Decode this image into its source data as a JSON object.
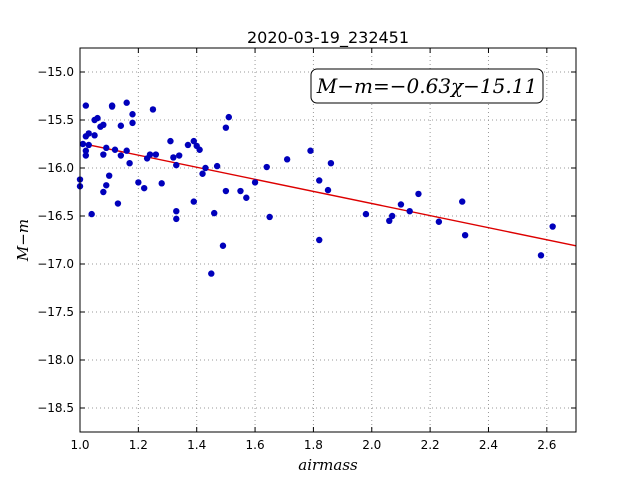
{
  "chart_data": {
    "type": "scatter",
    "title": "2020-03-19_232451",
    "xlabel": "airmass",
    "ylabel": "M−m",
    "xlim": [
      1.0,
      2.7
    ],
    "ylim": [
      -18.75,
      -14.75
    ],
    "xticks": [
      1.0,
      1.2,
      1.4,
      1.6,
      1.8,
      2.0,
      2.2,
      2.4,
      2.6
    ],
    "xtick_labels": [
      "1.0",
      "1.2",
      "1.4",
      "1.6",
      "1.8",
      "2.0",
      "2.2",
      "2.4",
      "2.6"
    ],
    "yticks": [
      -15.0,
      -15.5,
      -16.0,
      -16.5,
      -17.0,
      -17.5,
      -18.0,
      -18.5
    ],
    "ytick_labels": [
      "−15.0",
      "−15.5",
      "−16.0",
      "−16.5",
      "−17.0",
      "−17.5",
      "−18.0",
      "−18.5"
    ],
    "grid": true,
    "annotation": "M−m=−0.63χ−15.11",
    "fit": {
      "slope": -0.63,
      "intercept": -15.11,
      "color": "#dd0000"
    },
    "point_color": "#0000bb",
    "points": [
      {
        "x": 1.0,
        "y": -16.12
      },
      {
        "x": 1.0,
        "y": -16.19
      },
      {
        "x": 1.01,
        "y": -15.75
      },
      {
        "x": 1.02,
        "y": -15.35
      },
      {
        "x": 1.02,
        "y": -15.67
      },
      {
        "x": 1.02,
        "y": -15.82
      },
      {
        "x": 1.02,
        "y": -15.87
      },
      {
        "x": 1.03,
        "y": -15.76
      },
      {
        "x": 1.03,
        "y": -15.64
      },
      {
        "x": 1.04,
        "y": -16.48
      },
      {
        "x": 1.05,
        "y": -15.66
      },
      {
        "x": 1.05,
        "y": -15.5
      },
      {
        "x": 1.06,
        "y": -15.48
      },
      {
        "x": 1.07,
        "y": -15.57
      },
      {
        "x": 1.08,
        "y": -15.55
      },
      {
        "x": 1.08,
        "y": -15.86
      },
      {
        "x": 1.08,
        "y": -16.25
      },
      {
        "x": 1.09,
        "y": -15.79
      },
      {
        "x": 1.09,
        "y": -16.18
      },
      {
        "x": 1.1,
        "y": -16.08
      },
      {
        "x": 1.11,
        "y": -15.35
      },
      {
        "x": 1.11,
        "y": -15.36
      },
      {
        "x": 1.12,
        "y": -15.81
      },
      {
        "x": 1.13,
        "y": -16.37
      },
      {
        "x": 1.14,
        "y": -15.56
      },
      {
        "x": 1.14,
        "y": -15.87
      },
      {
        "x": 1.16,
        "y": -15.82
      },
      {
        "x": 1.16,
        "y": -15.32
      },
      {
        "x": 1.17,
        "y": -15.95
      },
      {
        "x": 1.18,
        "y": -15.44
      },
      {
        "x": 1.18,
        "y": -15.53
      },
      {
        "x": 1.2,
        "y": -16.15
      },
      {
        "x": 1.22,
        "y": -16.21
      },
      {
        "x": 1.23,
        "y": -15.9
      },
      {
        "x": 1.24,
        "y": -15.86
      },
      {
        "x": 1.25,
        "y": -15.39
      },
      {
        "x": 1.26,
        "y": -15.86
      },
      {
        "x": 1.28,
        "y": -16.16
      },
      {
        "x": 1.31,
        "y": -15.72
      },
      {
        "x": 1.32,
        "y": -15.89
      },
      {
        "x": 1.33,
        "y": -15.97
      },
      {
        "x": 1.33,
        "y": -16.53
      },
      {
        "x": 1.33,
        "y": -16.45
      },
      {
        "x": 1.34,
        "y": -15.87
      },
      {
        "x": 1.37,
        "y": -15.76
      },
      {
        "x": 1.39,
        "y": -15.72
      },
      {
        "x": 1.39,
        "y": -16.35
      },
      {
        "x": 1.4,
        "y": -15.77
      },
      {
        "x": 1.41,
        "y": -15.81
      },
      {
        "x": 1.42,
        "y": -16.06
      },
      {
        "x": 1.43,
        "y": -16.0
      },
      {
        "x": 1.45,
        "y": -17.1
      },
      {
        "x": 1.46,
        "y": -16.47
      },
      {
        "x": 1.47,
        "y": -15.98
      },
      {
        "x": 1.49,
        "y": -16.81
      },
      {
        "x": 1.5,
        "y": -15.58
      },
      {
        "x": 1.5,
        "y": -16.24
      },
      {
        "x": 1.51,
        "y": -15.47
      },
      {
        "x": 1.55,
        "y": -16.24
      },
      {
        "x": 1.57,
        "y": -16.31
      },
      {
        "x": 1.6,
        "y": -16.15
      },
      {
        "x": 1.64,
        "y": -15.99
      },
      {
        "x": 1.65,
        "y": -16.51
      },
      {
        "x": 1.71,
        "y": -15.91
      },
      {
        "x": 1.79,
        "y": -15.82
      },
      {
        "x": 1.82,
        "y": -16.13
      },
      {
        "x": 1.82,
        "y": -16.75
      },
      {
        "x": 1.85,
        "y": -16.23
      },
      {
        "x": 1.86,
        "y": -15.95
      },
      {
        "x": 1.98,
        "y": -16.48
      },
      {
        "x": 2.06,
        "y": -16.55
      },
      {
        "x": 2.07,
        "y": -16.5
      },
      {
        "x": 2.1,
        "y": -16.38
      },
      {
        "x": 2.13,
        "y": -16.45
      },
      {
        "x": 2.16,
        "y": -16.27
      },
      {
        "x": 2.23,
        "y": -16.56
      },
      {
        "x": 2.31,
        "y": -16.35
      },
      {
        "x": 2.32,
        "y": -16.7
      },
      {
        "x": 2.58,
        "y": -16.91
      },
      {
        "x": 2.62,
        "y": -16.61
      }
    ]
  }
}
